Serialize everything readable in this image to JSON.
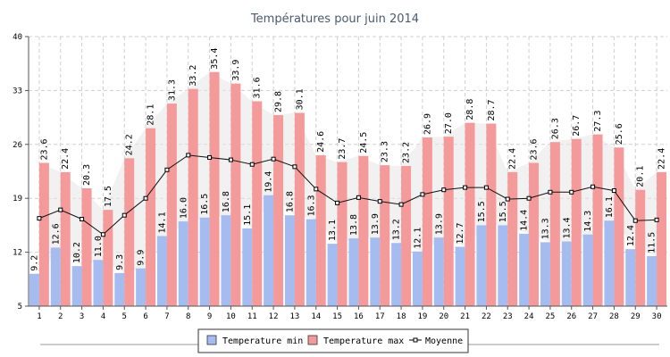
{
  "chart_data": {
    "type": "bar",
    "title": "Températures pour juin 2014",
    "categories": [
      "1",
      "2",
      "3",
      "4",
      "5",
      "6",
      "7",
      "8",
      "9",
      "10",
      "11",
      "12",
      "13",
      "14",
      "15",
      "16",
      "17",
      "18",
      "19",
      "20",
      "21",
      "22",
      "23",
      "24",
      "25",
      "26",
      "27",
      "28",
      "29",
      "30"
    ],
    "series": [
      {
        "name": "Temperature min",
        "type": "bar",
        "color": "#a4bcf0",
        "values": [
          9.2,
          12.6,
          10.2,
          11.0,
          9.3,
          9.9,
          14.1,
          16.0,
          16.5,
          16.8,
          15.1,
          19.4,
          16.8,
          16.3,
          13.1,
          13.8,
          13.9,
          13.2,
          12.1,
          13.9,
          12.7,
          15.5,
          15.5,
          14.4,
          13.3,
          13.4,
          14.3,
          16.1,
          12.4,
          11.5
        ]
      },
      {
        "name": "Temperature max",
        "type": "bar",
        "color": "#f59a9a",
        "values": [
          23.6,
          22.4,
          20.3,
          17.5,
          24.2,
          28.1,
          31.3,
          33.2,
          35.4,
          33.9,
          31.6,
          29.8,
          30.1,
          24.6,
          23.7,
          24.5,
          23.3,
          23.2,
          26.9,
          27.0,
          28.8,
          28.7,
          22.4,
          23.6,
          26.3,
          26.7,
          27.3,
          25.6,
          20.1,
          22.4
        ]
      },
      {
        "name": "Moyenne",
        "type": "line",
        "color": "#000000",
        "values": [
          16.4,
          17.5,
          16.3,
          14.3,
          16.8,
          19.0,
          22.7,
          24.6,
          24.3,
          24.0,
          23.4,
          24.1,
          23.1,
          20.2,
          18.4,
          19.1,
          18.6,
          18.2,
          19.5,
          20.1,
          20.4,
          20.4,
          18.9,
          19.0,
          19.8,
          19.8,
          20.5,
          20.0,
          16.1,
          16.2
        ]
      }
    ],
    "yticks": [
      5,
      12,
      19,
      26,
      33,
      40
    ],
    "ylim": [
      5,
      40
    ],
    "grid": true,
    "legend_position": "bottom"
  }
}
